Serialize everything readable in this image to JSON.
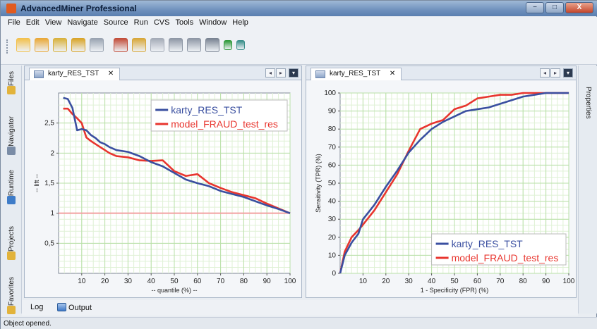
{
  "window": {
    "title": "AdvancedMiner Professional",
    "minimize": "−",
    "maximize": "□",
    "close": "X"
  },
  "menu": [
    "File",
    "Edit",
    "View",
    "Navigate",
    "Source",
    "Run",
    "CVS",
    "Tools",
    "Window",
    "Help"
  ],
  "toolbar": {
    "buttons": [
      {
        "icon": "new-file-icon",
        "color": "#f2c14e"
      },
      {
        "icon": "new-project-icon",
        "color": "#e9a93a"
      },
      {
        "icon": "open-project-icon",
        "color": "#d9b23e"
      },
      {
        "icon": "database-icon",
        "color": "#d9a52a"
      },
      {
        "icon": "save-all-icon",
        "color": "#9aa4b2"
      },
      {
        "icon": "cut-icon",
        "color": "#c24d3a"
      },
      {
        "icon": "copy-icon",
        "color": "#d8a83a"
      },
      {
        "icon": "paste-icon",
        "color": "#a5acb8"
      },
      {
        "icon": "undo-icon",
        "color": "#8f98a6"
      },
      {
        "icon": "redo-icon",
        "color": "#8f98a6"
      },
      {
        "icon": "find-icon",
        "color": "#7a8493"
      },
      {
        "icon": "run-icon",
        "color": "#2f9a3a"
      },
      {
        "icon": "debug-icon",
        "color": "#3a8f8a"
      }
    ]
  },
  "left_tabs": [
    {
      "label": "Files",
      "icon": "files-icon",
      "color": "#e2b33b"
    },
    {
      "label": "Navigator",
      "icon": "navigator-icon",
      "color": "#7a8ca6"
    },
    {
      "label": "Runtime",
      "icon": "runtime-icon",
      "color": "#3e7cc8"
    },
    {
      "label": "Projects",
      "icon": "projects-icon",
      "color": "#e2b33b"
    },
    {
      "label": "Favorites",
      "icon": "favorites-icon",
      "color": "#e2b33b"
    }
  ],
  "right_tabs": [
    {
      "label": "Properties"
    }
  ],
  "panels": {
    "lift": {
      "tab_label": "karty_RES_TST",
      "tab_close": "✕",
      "scroll_left": "◂",
      "scroll_right": "▸",
      "dropdown": "▾"
    },
    "roc": {
      "tab_label": "karty_RES_TST",
      "tab_close": "✕",
      "scroll_left": "◂",
      "scroll_right": "▸",
      "dropdown": "▾"
    }
  },
  "bottom_tabs": [
    {
      "label": "Log"
    },
    {
      "label": "Output",
      "icon": "output-icon"
    }
  ],
  "status": {
    "text": "Object opened."
  },
  "colors": {
    "series_blue": "#3a4fa0",
    "series_red": "#e8352e",
    "grid": "#b9e0a8",
    "plot_bg": "#ffffff",
    "baseline": "#f2a0a0"
  },
  "chart_data": [
    {
      "type": "line",
      "xlabel": "-- quantile (%) --",
      "ylabel": "-- lift --",
      "xlim": [
        0,
        100
      ],
      "ylim": [
        0,
        3.0
      ],
      "xticks": [
        10,
        20,
        30,
        40,
        50,
        60,
        70,
        80,
        90,
        100
      ],
      "yticks": [
        0.5,
        1,
        1.5,
        2,
        2.5
      ],
      "ytick_labels": [
        "0,5",
        "1",
        "1,5",
        "2",
        "2,5"
      ],
      "grid": true,
      "legend_position": "top-right",
      "reference_line": {
        "y": 1
      },
      "series": [
        {
          "name": "karty_RES_TST",
          "color": "#3a4fa0",
          "x": [
            2,
            4,
            6,
            8,
            10,
            12,
            14,
            16,
            18,
            20,
            22,
            25,
            30,
            35,
            40,
            45,
            50,
            55,
            60,
            65,
            70,
            75,
            80,
            85,
            90,
            95,
            100
          ],
          "y": [
            2.92,
            2.9,
            2.75,
            2.38,
            2.4,
            2.38,
            2.3,
            2.25,
            2.18,
            2.15,
            2.1,
            2.05,
            2.02,
            1.95,
            1.85,
            1.78,
            1.67,
            1.56,
            1.5,
            1.45,
            1.37,
            1.32,
            1.27,
            1.2,
            1.13,
            1.07,
            1.0
          ]
        },
        {
          "name": "model_FRAUD_test_res",
          "color": "#e8352e",
          "x": [
            2,
            4,
            6,
            8,
            10,
            12,
            14,
            16,
            18,
            20,
            22,
            25,
            30,
            35,
            40,
            45,
            50,
            55,
            60,
            65,
            70,
            75,
            80,
            85,
            90,
            95,
            100
          ],
          "y": [
            2.74,
            2.74,
            2.65,
            2.58,
            2.5,
            2.26,
            2.2,
            2.15,
            2.1,
            2.05,
            2.0,
            1.95,
            1.93,
            1.88,
            1.87,
            1.88,
            1.7,
            1.62,
            1.65,
            1.5,
            1.42,
            1.35,
            1.3,
            1.25,
            1.16,
            1.08,
            1.0
          ]
        }
      ]
    },
    {
      "type": "line",
      "xlabel": "1 - Specificity (FPR) (%)",
      "ylabel": "Sensitivity (TPR) (%)",
      "xlim": [
        0,
        100
      ],
      "ylim": [
        0,
        100
      ],
      "xticks": [
        10,
        20,
        30,
        40,
        50,
        60,
        70,
        80,
        90,
        100
      ],
      "yticks": [
        0,
        10,
        20,
        30,
        40,
        50,
        60,
        70,
        80,
        90,
        100
      ],
      "grid": true,
      "legend_position": "bottom-right",
      "series": [
        {
          "name": "karty_RES_TST",
          "color": "#3a4fa0",
          "x": [
            0,
            2,
            5,
            8,
            10,
            15,
            20,
            25,
            30,
            35,
            40,
            45,
            50,
            55,
            60,
            65,
            70,
            75,
            80,
            85,
            90,
            95,
            100
          ],
          "y": [
            0,
            10,
            17,
            22,
            30,
            38,
            48,
            57,
            67,
            74,
            80,
            84,
            87,
            90,
            91,
            92,
            94,
            96,
            98,
            99,
            100,
            100,
            100
          ]
        },
        {
          "name": "model_FRAUD_test_res",
          "color": "#e8352e",
          "x": [
            0,
            2,
            5,
            8,
            10,
            15,
            20,
            25,
            30,
            35,
            40,
            45,
            50,
            55,
            60,
            65,
            70,
            75,
            80,
            85,
            90,
            95,
            100
          ],
          "y": [
            0,
            12,
            20,
            24,
            27,
            35,
            45,
            55,
            68,
            80,
            83,
            85,
            91,
            93,
            97,
            98,
            99,
            99,
            100,
            100,
            100,
            100,
            100
          ]
        }
      ]
    }
  ]
}
